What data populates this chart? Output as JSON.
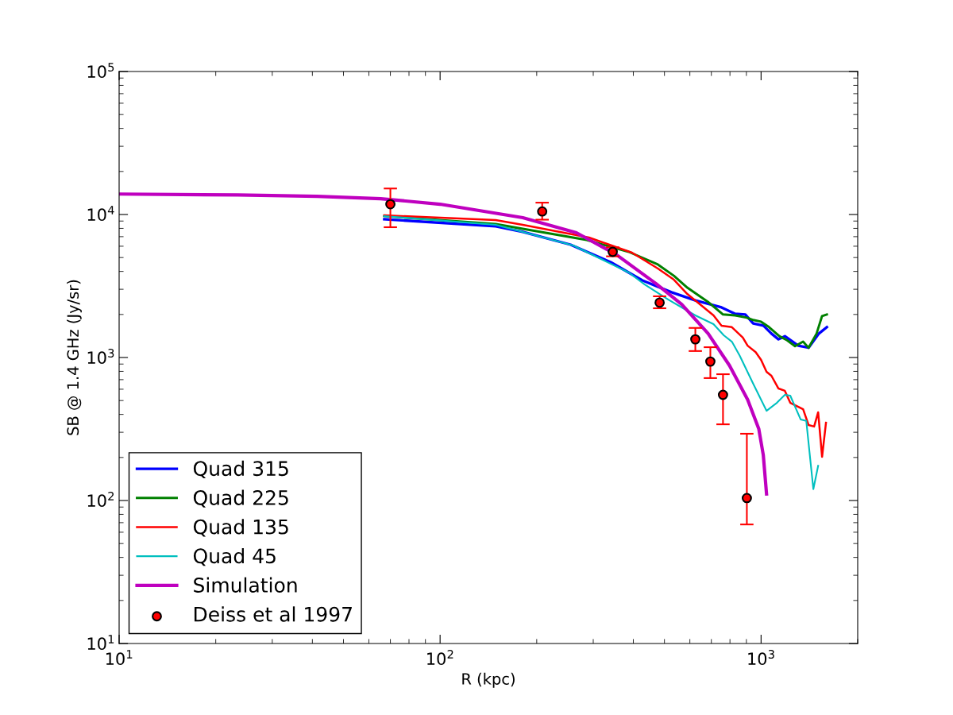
{
  "chart_data": {
    "type": "line",
    "xlabel": "R (kpc)",
    "ylabel": "SB @ 1.4 GHz (Jy/sr)",
    "log": "xy",
    "grid": false,
    "legend": "bottom left",
    "xlim": [
      10,
      2000
    ],
    "ylim": [
      10,
      100000
    ],
    "xticks": [
      {
        "value": 10,
        "label": "10$^{1}$"
      },
      {
        "value": 100,
        "label": "10$^{2}$"
      },
      {
        "value": 1000,
        "label": "10$^{3}$"
      }
    ],
    "yticks": [
      {
        "value": 10,
        "label": "10$^{1}$"
      },
      {
        "value": 100,
        "label": "10$^{2}$"
      },
      {
        "value": 1000,
        "label": "10$^{3}$"
      },
      {
        "value": 10000,
        "label": "10$^{4}$"
      },
      {
        "value": 100000,
        "label": "10$^{5}$"
      }
    ],
    "series": [
      {
        "name": "Quad 315",
        "color": "#0000ff",
        "x": [
          67,
          149,
          181,
          255,
          340,
          427,
          526,
          624,
          753,
          830,
          893,
          945,
          1017,
          1077,
          1133,
          1186,
          1306,
          1406,
          1514,
          1603
        ],
        "values": [
          9270,
          8260,
          7550,
          6150,
          4640,
          3460,
          2860,
          2510,
          2240,
          2020,
          2000,
          1730,
          1670,
          1470,
          1340,
          1410,
          1210,
          1170,
          1470,
          1630
        ]
      },
      {
        "name": "Quad 225",
        "color": "#008000",
        "x": [
          67,
          149,
          181,
          286,
          387,
          477,
          535,
          589,
          683,
          761,
          830,
          903,
          945,
          1000,
          1059,
          1140,
          1205,
          1276,
          1352,
          1406,
          1489,
          1549,
          1603
        ],
        "values": [
          9750,
          8580,
          7940,
          6640,
          5480,
          4470,
          3730,
          3080,
          2450,
          2000,
          1970,
          1900,
          1830,
          1780,
          1630,
          1410,
          1320,
          1200,
          1290,
          1170,
          1470,
          1950,
          2000
        ]
      },
      {
        "name": "Quad 135",
        "color": "#ff0000",
        "x": [
          67,
          149,
          181,
          291,
          396,
          477,
          535,
          589,
          711,
          753,
          811,
          877,
          908,
          962,
          1000,
          1040,
          1077,
          1133,
          1186,
          1233,
          1352,
          1406,
          1463,
          1506,
          1549,
          1593
        ],
        "values": [
          9860,
          9140,
          8470,
          6900,
          5410,
          4190,
          3500,
          2780,
          1970,
          1670,
          1630,
          1380,
          1210,
          1090,
          962,
          794,
          745,
          607,
          585,
          482,
          435,
          337,
          329,
          414,
          202,
          350
        ]
      },
      {
        "name": "Quad 45",
        "color": "#00bfbf",
        "x": [
          67,
          149,
          181,
          260,
          387,
          434,
          514,
          624,
          711,
          765,
          811,
          858,
          945,
          1040,
          1120,
          1186,
          1233,
          1328,
          1383,
          1455,
          1506
        ],
        "values": [
          9750,
          8470,
          7550,
          6070,
          3930,
          3240,
          2540,
          1970,
          1710,
          1430,
          1290,
          1030,
          656,
          424,
          482,
          548,
          541,
          369,
          360,
          120,
          175
        ]
      },
      {
        "name": "Simulation",
        "color": "#bf00bf",
        "x": [
          10,
          23.4,
          41.4,
          65.3,
          100,
          181,
          266,
          353,
          470,
          566,
          684,
          797,
          908,
          984,
          1016,
          1040
        ],
        "values": [
          13900,
          13700,
          13400,
          12900,
          11800,
          9500,
          7450,
          5270,
          3290,
          2350,
          1470,
          880,
          508,
          316,
          208,
          111
        ]
      },
      {
        "name": "Deiss et al 1997",
        "type": "scatter",
        "color": "#ff0000",
        "marker": "circle",
        "x": [
          70,
          208,
          345,
          483,
          624,
          695,
          761,
          903
        ],
        "values": [
          11800,
          10500,
          5480,
          2420,
          1340,
          937,
          548,
          104
        ],
        "errors": [
          [
            8150,
            15200
          ],
          [
            9200,
            12100
          ],
          [
            5100,
            5900
          ],
          [
            2210,
            2680
          ],
          [
            1110,
            1610
          ],
          [
            718,
            1180
          ],
          [
            341,
            764
          ],
          [
            68,
            293
          ]
        ]
      }
    ]
  }
}
